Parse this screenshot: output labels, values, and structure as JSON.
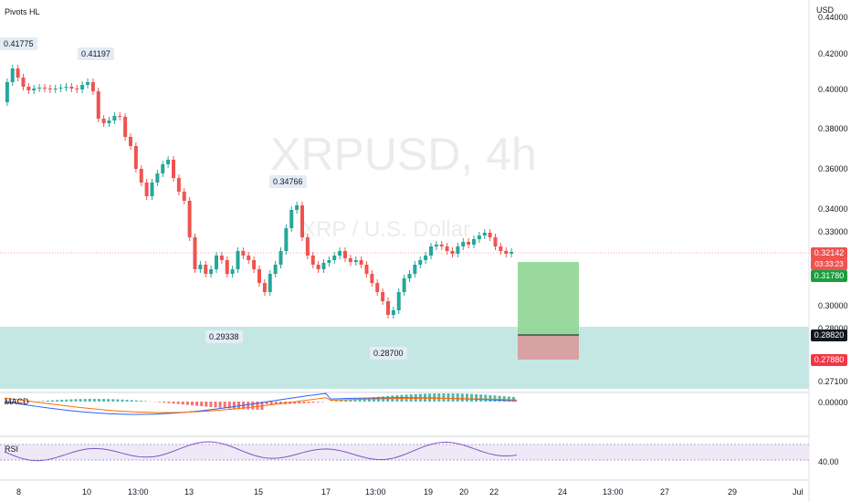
{
  "top_left": {
    "indicator": "Pivots HL"
  },
  "currency": "USD",
  "watermark": {
    "symbol": "XRPUSD, 4h",
    "description": "XRP / U.S. Dollar"
  },
  "price_axis": [
    "0.44000",
    "0.42000",
    "0.40000",
    "0.38000",
    "0.36000",
    "0.34000",
    "0.33000",
    "0.30000",
    "0.28000",
    "0.27100"
  ],
  "price_tags": {
    "current_price": "0.32142",
    "countdown": "03:33:23",
    "target": "0.31780",
    "entry": "0.28820",
    "stop": "0.27880"
  },
  "pivot_labels": [
    "0.41775",
    "0.41197",
    "0.34766",
    "0.29338",
    "0.28700"
  ],
  "macd": {
    "label": "MACD",
    "value": "0.00000"
  },
  "rsi": {
    "label": "RSI",
    "value": "40.00"
  },
  "time_axis": [
    "8",
    "10",
    "13:00",
    "13",
    "15",
    "17",
    "13:00",
    "19",
    "20",
    "22",
    "24",
    "13:00",
    "27",
    "29",
    "Jul"
  ],
  "colors": {
    "up": "#26a69a",
    "down": "#ef5350",
    "zone": "#b2dfdb",
    "profit": "#8fd694",
    "loss": "#d99a9a",
    "rsi_line": "#7e57c2"
  }
}
